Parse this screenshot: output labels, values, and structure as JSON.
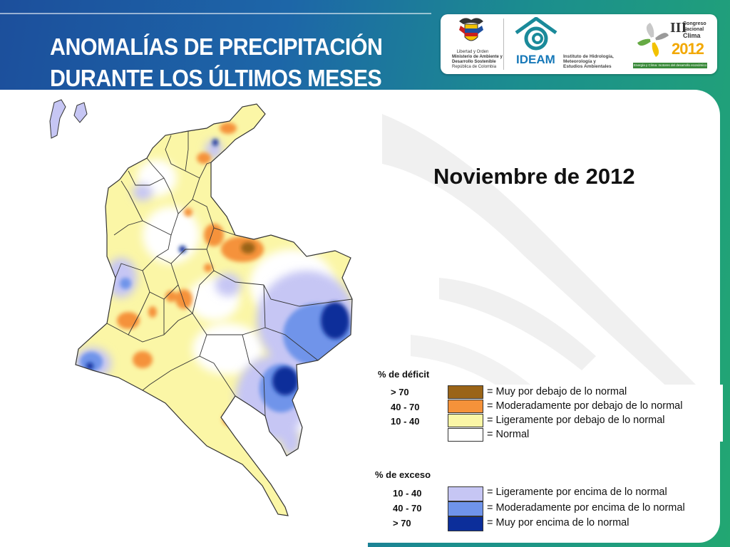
{
  "slide": {
    "title_line1": "ANOMALÍAS DE PRECIPITACIÓN",
    "title_line2": "DURANTE LOS ÚLTIMOS MESES",
    "month_title": "Noviembre de 2012"
  },
  "logos": {
    "ministry": {
      "icon": "colombia-coat-of-arms-icon",
      "line1": "Libertad y Orden",
      "line2": "Ministerio de Ambiente y",
      "line3": "Desarrollo Sostenible",
      "line4": "República de Colombia"
    },
    "ideam": {
      "icon": "ideam-swirl-icon",
      "name": "IDEAM",
      "line1": "Instituto de Hidrología,",
      "line2": "Meteorología y",
      "line3": "Estudios Ambientales"
    },
    "congress": {
      "icon": "flower-icon",
      "roman": "III",
      "line1": "Congreso",
      "line2": "Nacional",
      "line3": "Clima",
      "year": "2012",
      "tagline": "Energía y Clima: motores del desarrollo económico"
    }
  },
  "legend": {
    "deficit_header": "% de déficit",
    "excess_header": "% de exceso",
    "deficit": [
      {
        "range": "> 70",
        "label": "= Muy por debajo de lo normal",
        "color": "#9a6417"
      },
      {
        "range": "40 -  70",
        "label": "= Moderadamente por debajo de lo normal",
        "color": "#f5923a"
      },
      {
        "range": "10 -  40",
        "label": "= Ligeramente por debajo de lo normal",
        "color": "#fbf6a6"
      },
      {
        "range": "",
        "label": "= Normal",
        "color": "#ffffff"
      }
    ],
    "excess": [
      {
        "range": "10 -  40",
        "label": "= Ligeramente por encima de lo normal",
        "color": "#c6c6f4"
      },
      {
        "range": "40 -  70",
        "label": "= Moderadamente por encima de lo normal",
        "color": "#6f94ea"
      },
      {
        "range": "> 70",
        "label": "= Muy por encima de lo normal",
        "color": "#0c2e9a"
      }
    ]
  },
  "map": {
    "subject": "Colombia precipitation anomaly map",
    "colors": {
      "normal": "#ffffff",
      "slight_deficit": "#fbf6a6",
      "moderate_deficit": "#f5923a",
      "severe_deficit": "#9a6417",
      "slight_excess": "#c6c6f4",
      "moderate_excess": "#6f94ea",
      "severe_excess": "#0c2e9a",
      "border": "#333333"
    }
  }
}
